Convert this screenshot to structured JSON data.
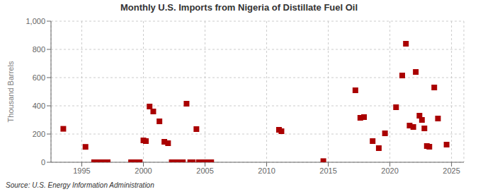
{
  "chart_data": {
    "type": "scatter",
    "title": "Monthly U.S. Imports from Nigeria of Distillate Fuel Oil",
    "ylabel": "Thousand Barrels",
    "annotations": [
      "Source: U.S. Energy Information Administration"
    ],
    "x": [
      1993.5,
      1995.3,
      1996.0,
      1996.2,
      1996.5,
      1996.8,
      1997.1,
      1999.0,
      1999.2,
      1999.4,
      1999.7,
      2000.0,
      2000.2,
      2000.5,
      2000.8,
      2001.3,
      2001.7,
      2002.0,
      2002.3,
      2002.6,
      2002.8,
      2003.0,
      2003.2,
      2003.5,
      2003.8,
      2004.0,
      2004.3,
      2004.5,
      2004.7,
      2004.9,
      2005.1,
      2005.3,
      2005.5,
      2011.0,
      2011.2,
      2014.6,
      2017.2,
      2017.6,
      2017.9,
      2018.6,
      2019.1,
      2019.6,
      2020.5,
      2021.0,
      2021.3,
      2021.6,
      2021.9,
      2022.1,
      2022.4,
      2022.6,
      2022.8,
      2023.0,
      2023.2,
      2023.6,
      2023.9,
      2024.6
    ],
    "values": [
      237,
      109,
      0,
      0,
      0,
      0,
      0,
      0,
      0,
      0,
      0,
      155,
      150,
      395,
      360,
      290,
      145,
      135,
      0,
      0,
      0,
      0,
      0,
      415,
      0,
      0,
      235,
      0,
      0,
      0,
      0,
      0,
      0,
      230,
      220,
      8,
      510,
      315,
      320,
      150,
      100,
      205,
      390,
      615,
      840,
      260,
      250,
      640,
      330,
      300,
      240,
      115,
      110,
      530,
      310,
      125
    ],
    "color": "#aa0000",
    "marker": "square",
    "xlim": [
      1992.5,
      2026
    ],
    "ylim": [
      0,
      1000
    ],
    "xticks": [
      1995,
      2000,
      2005,
      2010,
      2015,
      2020,
      2025
    ],
    "yticks": [
      0,
      200,
      400,
      600,
      800,
      {
        "value": 1000,
        "label": "1,000"
      }
    ],
    "grid": true
  }
}
